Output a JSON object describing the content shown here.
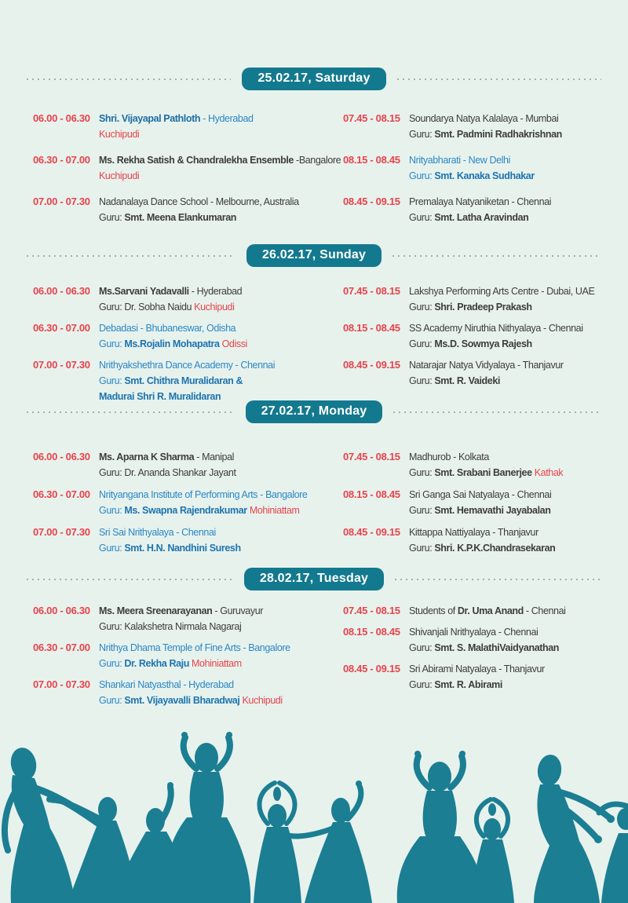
{
  "theme": {
    "bg": "#e7f2ed",
    "teal": "#13798e",
    "dancer": "#1b7e92",
    "dots": "#9cb3aa",
    "red": "#e8434c",
    "gray": "#3d3d3c",
    "blue": "#2b87c6",
    "bblue": "#1d74af",
    "navy": "#1d6da3"
  },
  "days": [
    {
      "header": "25.02.17, Saturday",
      "left": [
        {
          "time": "06.00 - 06.30",
          "lines": [
            [
              {
                "t": "Shri. Vijayapal Pathloth",
                "s": "bnavy"
              },
              {
                "t": " - Hyderabad",
                "s": "blue"
              }
            ],
            [
              {
                "t": "Kuchipudi",
                "s": "red"
              }
            ]
          ]
        },
        {
          "time": "06.30 - 07.00",
          "lines": [
            [
              {
                "t": "Ms. Rekha Satish & Chandralekha Ensemble",
                "s": "bgray"
              },
              {
                "t": " -Bangalore",
                "s": "gray"
              }
            ],
            [
              {
                "t": "Kuchipudi",
                "s": "red"
              }
            ]
          ]
        },
        {
          "time": "07.00 - 07.30",
          "lines": [
            [
              {
                "t": "Nadanalaya Dance School - Melbourne, Australia",
                "s": "gray"
              }
            ],
            [
              {
                "t": "Guru: ",
                "s": "gray"
              },
              {
                "t": "Smt. Meena Elankumaran",
                "s": "bgray"
              }
            ]
          ]
        }
      ],
      "right": [
        {
          "time": "07.45 - 08.15",
          "lines": [
            [
              {
                "t": "Soundarya Natya Kalalaya - Mumbai",
                "s": "gray"
              }
            ],
            [
              {
                "t": "Guru: ",
                "s": "gray"
              },
              {
                "t": "Smt. Padmini Radhakrishnan",
                "s": "bgray"
              }
            ]
          ]
        },
        {
          "time": "08.15 - 08.45",
          "lines": [
            [
              {
                "t": "Nrityabharati - New Delhi",
                "s": "blue"
              }
            ],
            [
              {
                "t": "Guru: ",
                "s": "blue"
              },
              {
                "t": "Smt. Kanaka Sudhakar",
                "s": "bblue"
              }
            ]
          ]
        },
        {
          "time": "08.45 - 09.15",
          "lines": [
            [
              {
                "t": "Premalaya Natyaniketan - Chennai",
                "s": "gray"
              }
            ],
            [
              {
                "t": "Guru: ",
                "s": "gray"
              },
              {
                "t": "Smt. Latha Aravindan",
                "s": "bgray"
              }
            ]
          ]
        }
      ]
    },
    {
      "header": "26.02.17, Sunday",
      "left": [
        {
          "time": "06.00 - 06.30",
          "lines": [
            [
              {
                "t": "Ms.Sarvani Yadavalli",
                "s": "bgray"
              },
              {
                "t": " - Hyderabad",
                "s": "gray"
              }
            ],
            [
              {
                "t": "Guru: Dr. Sobha Naidu ",
                "s": "gray"
              },
              {
                "t": "Kuchipudi",
                "s": "red"
              }
            ]
          ]
        },
        {
          "time": "06.30 - 07.00",
          "lines": [
            [
              {
                "t": "Debadasi - Bhubaneswar, Odisha",
                "s": "blue"
              }
            ],
            [
              {
                "t": "Guru: ",
                "s": "blue"
              },
              {
                "t": "Ms.Rojalin Mohapatra ",
                "s": "bblue"
              },
              {
                "t": "Odissi",
                "s": "red"
              }
            ]
          ]
        },
        {
          "time": "07.00 - 07.30",
          "lines": [
            [
              {
                "t": "Nrithyakshethra Dance Academy - Chennai",
                "s": "blue"
              }
            ],
            [
              {
                "t": "Guru: ",
                "s": "blue"
              },
              {
                "t": "Smt. Chithra Muralidaran &",
                "s": "bblue"
              }
            ],
            [
              {
                "t": "Madurai Shri R. Muralidaran",
                "s": "bblue"
              }
            ]
          ]
        }
      ],
      "right": [
        {
          "time": "07.45 - 08.15",
          "lines": [
            [
              {
                "t": "Lakshya Performing Arts Centre - Dubai, UAE",
                "s": "gray"
              }
            ],
            [
              {
                "t": "Guru: ",
                "s": "gray"
              },
              {
                "t": "Shri. Pradeep Prakash",
                "s": "bgray"
              }
            ]
          ]
        },
        {
          "time": "08.15 - 08.45",
          "lines": [
            [
              {
                "t": "SS Academy Niruthia Nithyalaya - Chennai",
                "s": "gray"
              }
            ],
            [
              {
                "t": "Guru: ",
                "s": "gray"
              },
              {
                "t": "Ms.D. Sowmya Rajesh",
                "s": "bgray"
              }
            ]
          ]
        },
        {
          "time": "08.45 - 09.15",
          "lines": [
            [
              {
                "t": "Natarajar Natya Vidyalaya - Thanjavur",
                "s": "gray"
              }
            ],
            [
              {
                "t": "Guru: ",
                "s": "gray"
              },
              {
                "t": "Smt. R. Vaideki",
                "s": "bgray"
              }
            ]
          ]
        }
      ]
    },
    {
      "header": "27.02.17, Monday",
      "left": [
        {
          "time": "06.00 - 06.30",
          "lines": [
            [
              {
                "t": "Ms. Aparna K Sharma",
                "s": "bgray"
              },
              {
                "t": " - Manipal",
                "s": "gray"
              }
            ],
            [
              {
                "t": "Guru: Dr. Ananda Shankar Jayant",
                "s": "gray"
              }
            ]
          ]
        },
        {
          "time": "06.30 - 07.00",
          "lines": [
            [
              {
                "t": "Nrityangana Institute of Performing Arts - Bangalore",
                "s": "blue"
              }
            ],
            [
              {
                "t": "Guru: ",
                "s": "blue"
              },
              {
                "t": "Ms. Swapna Rajendrakumar ",
                "s": "bblue"
              },
              {
                "t": "Mohiniattam",
                "s": "red"
              }
            ]
          ]
        },
        {
          "time": "07.00 - 07.30",
          "lines": [
            [
              {
                "t": "Sri Sai Nrithyalaya - Chennai",
                "s": "blue"
              }
            ],
            [
              {
                "t": "Guru: ",
                "s": "blue"
              },
              {
                "t": "Smt. H.N. Nandhini Suresh",
                "s": "bblue"
              }
            ]
          ]
        }
      ],
      "right": [
        {
          "time": "07.45 - 08.15",
          "lines": [
            [
              {
                "t": "Madhurob - Kolkata",
                "s": "gray"
              }
            ],
            [
              {
                "t": "Guru: ",
                "s": "gray"
              },
              {
                "t": "Smt. Srabani Banerjee ",
                "s": "bgray"
              },
              {
                "t": "Kathak",
                "s": "red"
              }
            ]
          ]
        },
        {
          "time": "08.15 - 08.45",
          "lines": [
            [
              {
                "t": "Sri Ganga Sai Natyalaya - Chennai",
                "s": "gray"
              }
            ],
            [
              {
                "t": "Guru: ",
                "s": "gray"
              },
              {
                "t": "Smt. Hemavathi Jayabalan",
                "s": "bgray"
              }
            ]
          ]
        },
        {
          "time": "08.45 - 09.15",
          "lines": [
            [
              {
                "t": "Kittappa Nattiyalaya - Thanjavur",
                "s": "gray"
              }
            ],
            [
              {
                "t": "Guru: ",
                "s": "gray"
              },
              {
                "t": "Shri. K.P.K.Chandrasekaran",
                "s": "bgray"
              }
            ]
          ]
        }
      ]
    },
    {
      "header": "28.02.17, Tuesday",
      "left": [
        {
          "time": "06.00 - 06.30",
          "lines": [
            [
              {
                "t": "Ms. Meera Sreenarayanan",
                "s": "bgray"
              },
              {
                "t": " - Guruvayur",
                "s": "gray"
              }
            ],
            [
              {
                "t": "Guru: Kalakshetra Nirmala Nagaraj",
                "s": "gray"
              }
            ]
          ]
        },
        {
          "time": "06.30 - 07.00",
          "lines": [
            [
              {
                "t": "Nrithya Dhama Temple of Fine Arts - Bangalore",
                "s": "blue"
              }
            ],
            [
              {
                "t": "Guru: ",
                "s": "blue"
              },
              {
                "t": "Dr. Rekha Raju ",
                "s": "bblue"
              },
              {
                "t": "Mohiniattam",
                "s": "red"
              }
            ]
          ]
        },
        {
          "time": "07.00 - 07.30",
          "lines": [
            [
              {
                "t": "Shankari Natyasthal - Hyderabad",
                "s": "blue"
              }
            ],
            [
              {
                "t": "Guru: ",
                "s": "blue"
              },
              {
                "t": "Smt. Vijayavalli Bharadwaj ",
                "s": "bblue"
              },
              {
                "t": "Kuchipudi",
                "s": "red"
              }
            ]
          ]
        }
      ],
      "right": [
        {
          "time": "07.45 - 08.15",
          "lines": [
            [
              {
                "t": "Students of ",
                "s": "gray"
              },
              {
                "t": "Dr. Uma Anand",
                "s": "bgray"
              },
              {
                "t": " - Chennai",
                "s": "gray"
              }
            ]
          ]
        },
        {
          "time": "08.15 - 08.45",
          "lines": [
            [
              {
                "t": "Shivanjali Nrithyalaya - Chennai",
                "s": "gray"
              }
            ],
            [
              {
                "t": "Guru: ",
                "s": "gray"
              },
              {
                "t": "Smt. S. MalathiVaidyanathan",
                "s": "bgray"
              }
            ]
          ]
        },
        {
          "time": "08.45 - 09.15",
          "lines": [
            [
              {
                "t": "Sri Abirami Natyalaya - Thanjavur",
                "s": "gray"
              }
            ],
            [
              {
                "t": "Guru: ",
                "s": "gray"
              },
              {
                "t": "Smt. R. Abirami",
                "s": "bgray"
              }
            ]
          ]
        }
      ]
    }
  ]
}
